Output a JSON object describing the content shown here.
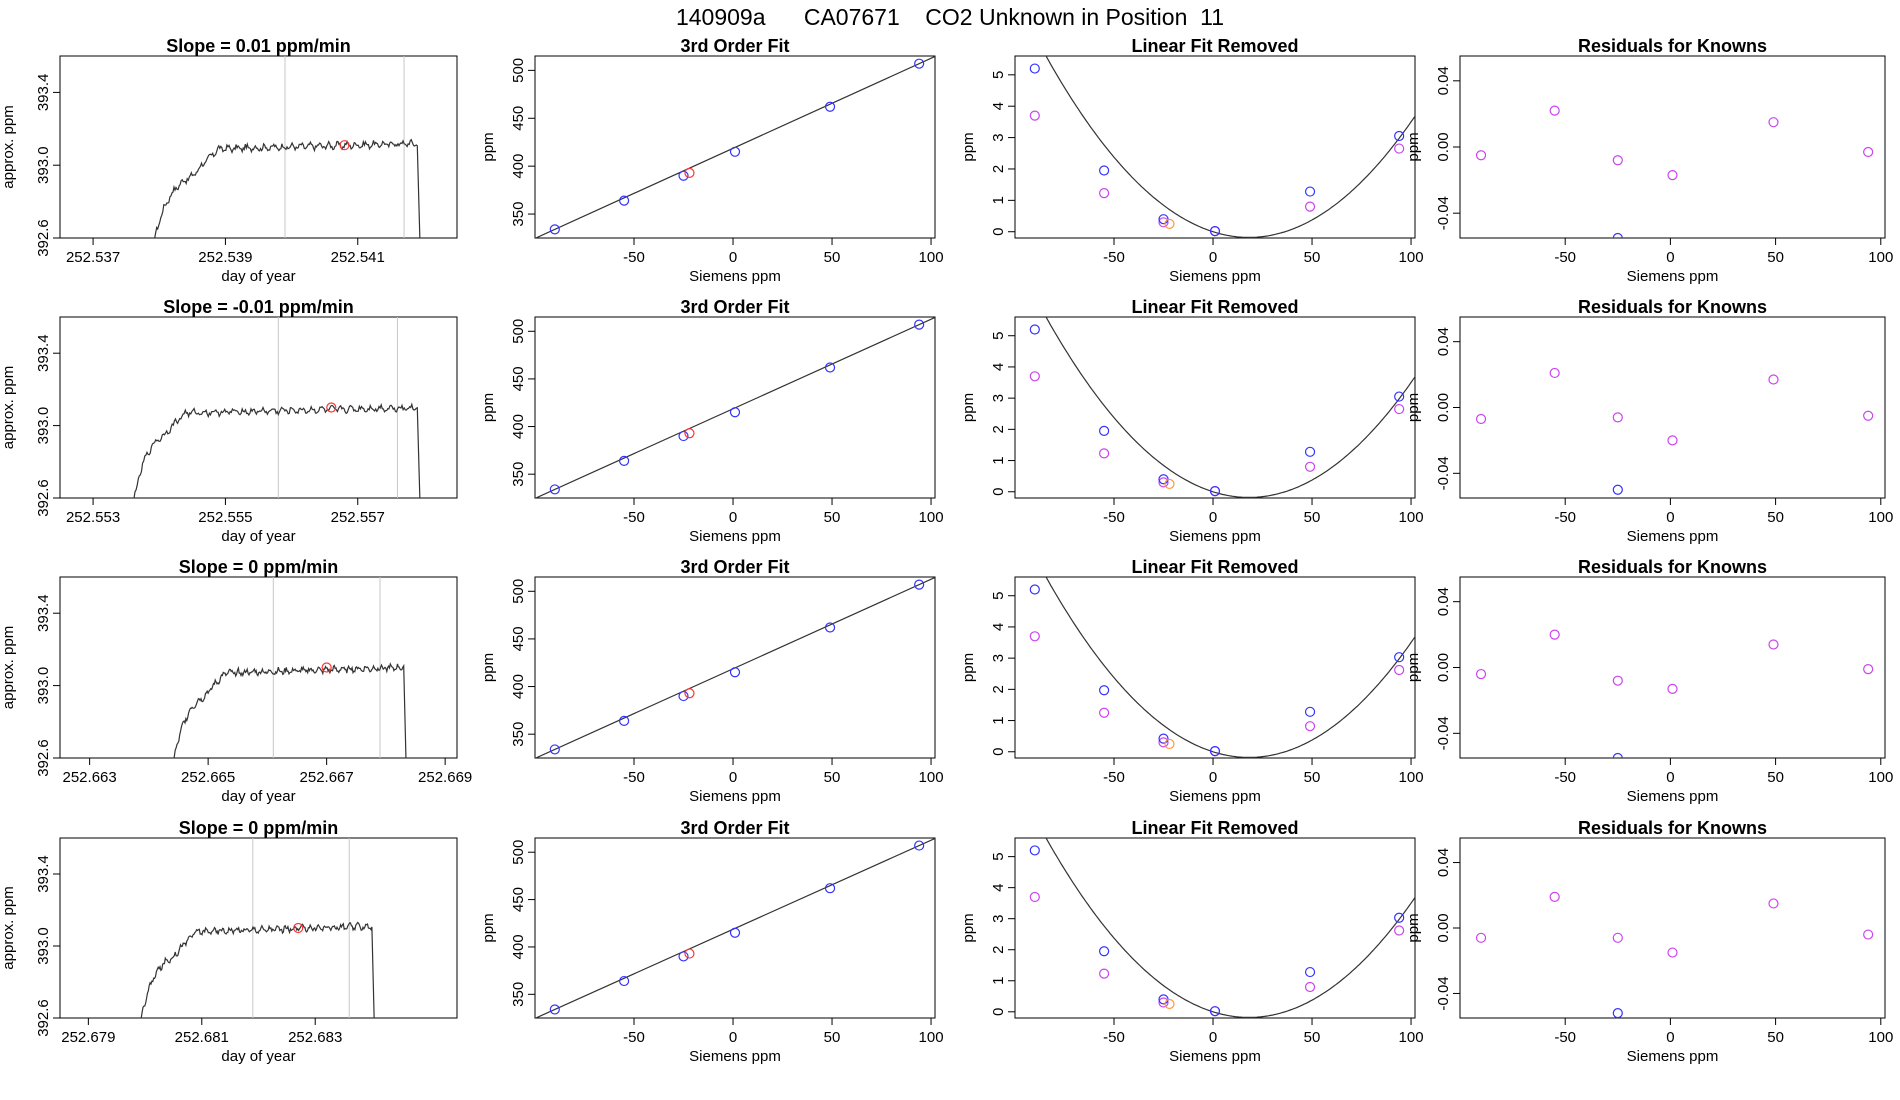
{
  "figure": {
    "title": "140909a      CA07671    CO2 Unknown in Position  11"
  },
  "colors": {
    "line": "#333333",
    "axis": "#000000",
    "vline": "#c8c8c8",
    "known_point": "#3333ff",
    "unknown_point": "#ff3333",
    "unknown_point_linear": "#ff9933",
    "residual_point": "#cc44ee"
  },
  "chart_data": [
    {
      "type": "line",
      "panel": "trace",
      "row": 1,
      "title": "Slope =  0.01  ppm/min",
      "xlabel": "day of year",
      "ylabel": "approx. ppm",
      "xlim": [
        252.5365,
        252.5425
      ],
      "ylim": [
        392.6,
        393.6
      ],
      "xticks": [
        252.537,
        252.539,
        252.541
      ],
      "xtick_labels": [
        "252.537",
        "252.539",
        "252.541"
      ],
      "yticks": [
        392.6,
        393.0,
        393.4
      ],
      "ytick_labels": [
        "392.6",
        "393.0",
        "393.4"
      ],
      "vlines": [
        252.5399,
        252.5417
      ],
      "trace": {
        "x_start": 252.5379,
        "x_plateau": 252.5389,
        "x_end": 252.5419,
        "x_drop": 252.54195,
        "y_low": 392.55,
        "y_knee": 392.97,
        "y_plateau": 393.09,
        "y_late": 393.12
      },
      "marker": {
        "x": 252.5408,
        "y": 393.11
      }
    },
    {
      "type": "scatter",
      "panel": "fit3",
      "row": 1,
      "title": "3rd Order Fit",
      "xlabel": "Siemens ppm",
      "ylabel": "ppm",
      "xlim": [
        -100,
        102
      ],
      "ylim": [
        325,
        515
      ],
      "xticks": [
        -50,
        0,
        50,
        100
      ],
      "xtick_labels": [
        "-50",
        "0",
        "50",
        "100"
      ],
      "yticks": [
        350,
        400,
        450,
        500
      ],
      "ytick_labels": [
        "350",
        "400",
        "450",
        "500"
      ],
      "knowns": [
        [
          -90,
          334
        ],
        [
          -55,
          364
        ],
        [
          -25,
          390
        ],
        [
          1,
          415
        ],
        [
          49,
          462
        ],
        [
          94,
          507
        ]
      ],
      "unknown": [
        -22,
        393
      ]
    },
    {
      "type": "scatter",
      "panel": "linear_removed",
      "row": 1,
      "title": "Linear Fit Removed",
      "xlabel": "Siemens ppm",
      "ylabel": "ppm",
      "xlim": [
        -100,
        102
      ],
      "ylim": [
        -0.2,
        5.6
      ],
      "xticks": [
        -50,
        0,
        50,
        100
      ],
      "xtick_labels": [
        "-50",
        "0",
        "50",
        "100"
      ],
      "yticks": [
        0,
        1,
        2,
        3,
        4,
        5
      ],
      "ytick_labels": [
        "0",
        "1",
        "2",
        "3",
        "4",
        "5"
      ],
      "knowns": [
        [
          -90,
          5.2
        ],
        [
          -55,
          1.95
        ],
        [
          -25,
          0.4
        ],
        [
          1,
          0.02
        ],
        [
          49,
          1.28
        ],
        [
          94,
          3.05
        ]
      ],
      "alt_points": [
        [
          -90,
          3.7
        ],
        [
          -55,
          1.23
        ],
        [
          -25,
          0.3
        ],
        [
          1,
          0.02
        ],
        [
          49,
          0.8
        ],
        [
          94,
          2.65
        ]
      ],
      "unknown": [
        -22,
        0.25
      ],
      "curve_coeffs": [
        0.0,
        -0.02,
        0.00055
      ]
    },
    {
      "type": "scatter",
      "panel": "residuals",
      "row": 1,
      "title": "Residuals for Knowns",
      "xlabel": "Siemens ppm",
      "ylabel": "ppm",
      "xlim": [
        -100,
        102
      ],
      "ylim": [
        -0.055,
        0.055
      ],
      "xticks": [
        -50,
        0,
        50,
        100
      ],
      "xtick_labels": [
        "-50",
        "0",
        "50",
        "100"
      ],
      "yticks": [
        -0.04,
        0.0,
        0.04
      ],
      "ytick_labels": [
        "-0.04",
        "0.00",
        "0.04"
      ],
      "points": [
        [
          -90,
          -0.005
        ],
        [
          -55,
          0.022
        ],
        [
          -25,
          -0.008
        ],
        [
          1,
          -0.017
        ],
        [
          49,
          0.015
        ],
        [
          94,
          -0.003
        ]
      ],
      "outlier": [
        -25,
        -0.055
      ]
    },
    {
      "type": "line",
      "panel": "trace",
      "row": 2,
      "title": "Slope =  -0.01  ppm/min",
      "xlabel": "day of year",
      "ylabel": "approx. ppm",
      "xlim": [
        252.5525,
        252.5585
      ],
      "ylim": [
        392.6,
        393.6
      ],
      "xticks": [
        252.553,
        252.555,
        252.557
      ],
      "xtick_labels": [
        "252.553",
        "252.555",
        "252.557"
      ],
      "yticks": [
        392.6,
        393.0,
        393.4
      ],
      "ytick_labels": [
        "392.6",
        "393.0",
        "393.4"
      ],
      "vlines": [
        252.5558,
        252.5576
      ],
      "trace": {
        "x_start": 252.5536,
        "x_plateau": 252.5544,
        "x_end": 252.5579,
        "x_drop": 252.55795,
        "y_low": 392.55,
        "y_knee": 392.98,
        "y_plateau": 393.07,
        "y_late": 393.1
      },
      "marker": {
        "x": 252.5566,
        "y": 393.1
      }
    },
    {
      "type": "scatter",
      "panel": "fit3",
      "row": 2,
      "title": "3rd Order Fit",
      "xlabel": "Siemens ppm",
      "ylabel": "ppm",
      "xlim": [
        -100,
        102
      ],
      "ylim": [
        325,
        515
      ],
      "xticks": [
        -50,
        0,
        50,
        100
      ],
      "xtick_labels": [
        "-50",
        "0",
        "50",
        "100"
      ],
      "yticks": [
        350,
        400,
        450,
        500
      ],
      "ytick_labels": [
        "350",
        "400",
        "450",
        "500"
      ],
      "knowns": [
        [
          -90,
          334
        ],
        [
          -55,
          364
        ],
        [
          -25,
          390
        ],
        [
          1,
          415
        ],
        [
          49,
          462
        ],
        [
          94,
          507
        ]
      ],
      "unknown": [
        -22,
        393
      ]
    },
    {
      "type": "scatter",
      "panel": "linear_removed",
      "row": 2,
      "title": "Linear Fit Removed",
      "xlabel": "Siemens ppm",
      "ylabel": "ppm",
      "xlim": [
        -100,
        102
      ],
      "ylim": [
        -0.2,
        5.6
      ],
      "xticks": [
        -50,
        0,
        50,
        100
      ],
      "xtick_labels": [
        "-50",
        "0",
        "50",
        "100"
      ],
      "yticks": [
        0,
        1,
        2,
        3,
        4,
        5
      ],
      "ytick_labels": [
        "0",
        "1",
        "2",
        "3",
        "4",
        "5"
      ],
      "knowns": [
        [
          -90,
          5.2
        ],
        [
          -55,
          1.95
        ],
        [
          -25,
          0.4
        ],
        [
          1,
          0.02
        ],
        [
          49,
          1.28
        ],
        [
          94,
          3.05
        ]
      ],
      "alt_points": [
        [
          -90,
          3.7
        ],
        [
          -55,
          1.23
        ],
        [
          -25,
          0.3
        ],
        [
          1,
          0.02
        ],
        [
          49,
          0.8
        ],
        [
          94,
          2.65
        ]
      ],
      "unknown": [
        -22,
        0.25
      ],
      "curve_coeffs": [
        0.0,
        -0.02,
        0.00055
      ]
    },
    {
      "type": "scatter",
      "panel": "residuals",
      "row": 2,
      "title": "Residuals for Knowns",
      "xlabel": "Siemens ppm",
      "ylabel": "ppm",
      "xlim": [
        -100,
        102
      ],
      "ylim": [
        -0.055,
        0.055
      ],
      "xticks": [
        -50,
        0,
        50,
        100
      ],
      "xtick_labels": [
        "-50",
        "0",
        "50",
        "100"
      ],
      "yticks": [
        -0.04,
        0.0,
        0.04
      ],
      "ytick_labels": [
        "-0.04",
        "0.00",
        "0.04"
      ],
      "points": [
        [
          -90,
          -0.007
        ],
        [
          -55,
          0.021
        ],
        [
          -25,
          -0.006
        ],
        [
          1,
          -0.02
        ],
        [
          49,
          0.017
        ],
        [
          94,
          -0.005
        ]
      ],
      "outlier": [
        -25,
        -0.05
      ]
    },
    {
      "type": "line",
      "panel": "trace",
      "row": 3,
      "title": "Slope =  0  ppm/min",
      "xlabel": "day of year",
      "ylabel": "approx. ppm",
      "xlim": [
        252.6625,
        252.6692
      ],
      "ylim": [
        392.6,
        393.6
      ],
      "xticks": [
        252.663,
        252.665,
        252.667,
        252.669
      ],
      "xtick_labels": [
        "252.663",
        "252.665",
        "252.667",
        "252.669"
      ],
      "yticks": [
        392.6,
        393.0,
        393.4
      ],
      "ytick_labels": [
        "392.6",
        "393.0",
        "393.4"
      ],
      "vlines": [
        252.6661,
        252.6679
      ],
      "trace": {
        "x_start": 252.6644,
        "x_plateau": 252.6653,
        "x_end": 252.6683,
        "x_drop": 252.66835,
        "y_low": 392.55,
        "y_knee": 392.97,
        "y_plateau": 393.07,
        "y_late": 393.1
      },
      "marker": {
        "x": 252.667,
        "y": 393.1
      }
    },
    {
      "type": "scatter",
      "panel": "fit3",
      "row": 3,
      "title": "3rd Order Fit",
      "xlabel": "Siemens ppm",
      "ylabel": "ppm",
      "xlim": [
        -100,
        102
      ],
      "ylim": [
        325,
        515
      ],
      "xticks": [
        -50,
        0,
        50,
        100
      ],
      "xtick_labels": [
        "-50",
        "0",
        "50",
        "100"
      ],
      "yticks": [
        350,
        400,
        450,
        500
      ],
      "ytick_labels": [
        "350",
        "400",
        "450",
        "500"
      ],
      "knowns": [
        [
          -90,
          334
        ],
        [
          -55,
          364
        ],
        [
          -25,
          390
        ],
        [
          1,
          415
        ],
        [
          49,
          462
        ],
        [
          94,
          507
        ]
      ],
      "unknown": [
        -22,
        393
      ]
    },
    {
      "type": "scatter",
      "panel": "linear_removed",
      "row": 3,
      "title": "Linear Fit Removed",
      "xlabel": "Siemens ppm",
      "ylabel": "ppm",
      "xlim": [
        -100,
        102
      ],
      "ylim": [
        -0.2,
        5.6
      ],
      "xticks": [
        -50,
        0,
        50,
        100
      ],
      "xtick_labels": [
        "-50",
        "0",
        "50",
        "100"
      ],
      "yticks": [
        0,
        1,
        2,
        3,
        4,
        5
      ],
      "ytick_labels": [
        "0",
        "1",
        "2",
        "3",
        "4",
        "5"
      ],
      "knowns": [
        [
          -90,
          5.2
        ],
        [
          -55,
          1.97
        ],
        [
          -25,
          0.42
        ],
        [
          1,
          0.02
        ],
        [
          49,
          1.28
        ],
        [
          94,
          3.03
        ]
      ],
      "alt_points": [
        [
          -90,
          3.7
        ],
        [
          -55,
          1.25
        ],
        [
          -25,
          0.3
        ],
        [
          1,
          0.02
        ],
        [
          49,
          0.82
        ],
        [
          94,
          2.62
        ]
      ],
      "unknown": [
        -22,
        0.25
      ],
      "curve_coeffs": [
        0.0,
        -0.02,
        0.00055
      ]
    },
    {
      "type": "scatter",
      "panel": "residuals",
      "row": 3,
      "title": "Residuals for Knowns",
      "xlabel": "Siemens ppm",
      "ylabel": "ppm",
      "xlim": [
        -100,
        102
      ],
      "ylim": [
        -0.055,
        0.055
      ],
      "xticks": [
        -50,
        0,
        50,
        100
      ],
      "xtick_labels": [
        "-50",
        "0",
        "50",
        "100"
      ],
      "yticks": [
        -0.04,
        0.0,
        0.04
      ],
      "ytick_labels": [
        "-0.04",
        "0.00",
        "0.04"
      ],
      "points": [
        [
          -90,
          -0.004
        ],
        [
          -55,
          0.02
        ],
        [
          -25,
          -0.008
        ],
        [
          1,
          -0.013
        ],
        [
          49,
          0.014
        ],
        [
          94,
          -0.001
        ]
      ],
      "outlier": [
        -25,
        -0.055
      ]
    },
    {
      "type": "line",
      "panel": "trace",
      "row": 4,
      "title": "Slope =  0  ppm/min",
      "xlabel": "day of year",
      "ylabel": "approx. ppm",
      "xlim": [
        252.6785,
        252.6855
      ],
      "ylim": [
        392.6,
        393.6
      ],
      "xticks": [
        252.679,
        252.681,
        252.683
      ],
      "xtick_labels": [
        "252.679",
        "252.681",
        "252.683"
      ],
      "yticks": [
        392.6,
        393.0,
        393.4
      ],
      "ytick_labels": [
        "392.6",
        "393.0",
        "393.4"
      ],
      "vlines": [
        252.6819,
        252.6836
      ],
      "trace": {
        "x_start": 252.6799,
        "x_plateau": 252.6809,
        "x_end": 252.684,
        "x_drop": 252.68405,
        "y_low": 392.55,
        "y_knee": 392.97,
        "y_plateau": 393.08,
        "y_late": 393.11
      },
      "marker": {
        "x": 252.6827,
        "y": 393.1
      }
    },
    {
      "type": "scatter",
      "panel": "fit3",
      "row": 4,
      "title": "3rd Order Fit",
      "xlabel": "Siemens ppm",
      "ylabel": "ppm",
      "xlim": [
        -100,
        102
      ],
      "ylim": [
        325,
        515
      ],
      "xticks": [
        -50,
        0,
        50,
        100
      ],
      "xtick_labels": [
        "-50",
        "0",
        "50",
        "100"
      ],
      "yticks": [
        350,
        400,
        450,
        500
      ],
      "ytick_labels": [
        "350",
        "400",
        "450",
        "500"
      ],
      "knowns": [
        [
          -90,
          334
        ],
        [
          -55,
          364
        ],
        [
          -25,
          390
        ],
        [
          1,
          415
        ],
        [
          49,
          462
        ],
        [
          94,
          507
        ]
      ],
      "unknown": [
        -22,
        393
      ]
    },
    {
      "type": "scatter",
      "panel": "linear_removed",
      "row": 4,
      "title": "Linear Fit Removed",
      "xlabel": "Siemens ppm",
      "ylabel": "ppm",
      "xlim": [
        -100,
        102
      ],
      "ylim": [
        -0.2,
        5.6
      ],
      "xticks": [
        -50,
        0,
        50,
        100
      ],
      "xtick_labels": [
        "-50",
        "0",
        "50",
        "100"
      ],
      "yticks": [
        0,
        1,
        2,
        3,
        4,
        5
      ],
      "ytick_labels": [
        "0",
        "1",
        "2",
        "3",
        "4",
        "5"
      ],
      "knowns": [
        [
          -90,
          5.2
        ],
        [
          -55,
          1.95
        ],
        [
          -25,
          0.4
        ],
        [
          1,
          0.02
        ],
        [
          49,
          1.28
        ],
        [
          94,
          3.03
        ]
      ],
      "alt_points": [
        [
          -90,
          3.7
        ],
        [
          -55,
          1.23
        ],
        [
          -25,
          0.3
        ],
        [
          1,
          0.02
        ],
        [
          49,
          0.8
        ],
        [
          94,
          2.62
        ]
      ],
      "unknown": [
        -22,
        0.25
      ],
      "curve_coeffs": [
        0.0,
        -0.02,
        0.00055
      ]
    },
    {
      "type": "scatter",
      "panel": "residuals",
      "row": 4,
      "title": "Residuals for Knowns",
      "xlabel": "Siemens ppm",
      "ylabel": "ppm",
      "xlim": [
        -100,
        102
      ],
      "ylim": [
        -0.055,
        0.055
      ],
      "xticks": [
        -50,
        0,
        50,
        100
      ],
      "xtick_labels": [
        "-50",
        "0",
        "50",
        "100"
      ],
      "yticks": [
        -0.04,
        0.0,
        0.04
      ],
      "ytick_labels": [
        "-0.04",
        "0.00",
        "0.04"
      ],
      "points": [
        [
          -90,
          -0.006
        ],
        [
          -55,
          0.019
        ],
        [
          -25,
          -0.006
        ],
        [
          1,
          -0.015
        ],
        [
          49,
          0.015
        ],
        [
          94,
          -0.004
        ]
      ],
      "outlier": [
        -25,
        -0.052
      ]
    }
  ]
}
